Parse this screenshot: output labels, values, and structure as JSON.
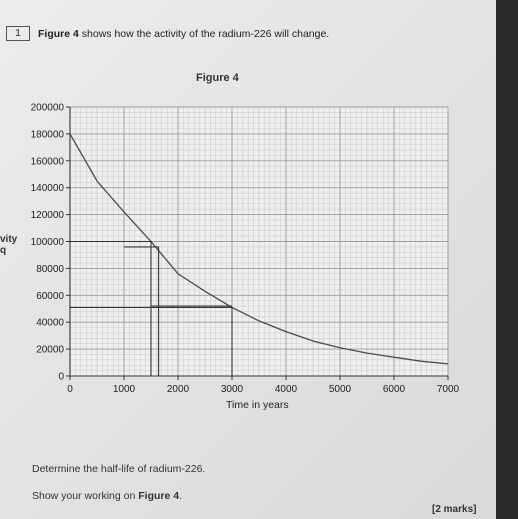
{
  "question": {
    "number": "1",
    "intro_bold": "Figure 4",
    "intro_rest": " shows how the activity of the radium-226 will change."
  },
  "figure_title": "Figure 4",
  "y_axis_label_line1": "vity",
  "y_axis_label_line2": "q",
  "x_axis_label": "Time in years",
  "instruction_1": "Determine the half-life of radium-226.",
  "instruction_2_prefix": "Show your working on ",
  "instruction_2_bold": "Figure 4",
  "instruction_2_suffix": ".",
  "marks": "[2 marks]",
  "chart_data": {
    "type": "line",
    "title": "Figure 4",
    "xlabel": "Time in years",
    "ylabel": "",
    "xlim": [
      0,
      7000
    ],
    "ylim": [
      0,
      200000
    ],
    "x_ticks": [
      0,
      1000,
      2000,
      3000,
      4000,
      5000,
      6000,
      7000
    ],
    "x_tick_labels": [
      "0",
      "1000",
      "2000",
      "3000",
      "4000",
      "5000",
      "6000",
      "7000"
    ],
    "y_ticks": [
      0,
      20000,
      40000,
      60000,
      80000,
      100000,
      120000,
      140000,
      160000,
      180000,
      200000
    ],
    "y_tick_labels": [
      "0",
      "20000",
      "40000",
      "60000",
      "80000",
      "100000",
      "120000",
      "140000",
      "160000",
      "180000",
      "200000"
    ],
    "grid": true,
    "series": [
      {
        "name": "",
        "x": [
          0,
          500,
          1000,
          1500,
          2000,
          2500,
          3000,
          3500,
          4000,
          4500,
          5000,
          5500,
          6000,
          6500,
          7000
        ],
        "y": [
          180000,
          145000,
          122000,
          100000,
          76000,
          63000,
          51000,
          41000,
          33000,
          26000,
          21000,
          17000,
          14000,
          11000,
          9000
        ]
      }
    ],
    "working_lines": [
      {
        "x": [
          0,
          1500,
          1500
        ],
        "y": [
          100000,
          100000,
          0
        ]
      },
      {
        "x": [
          1000,
          1640,
          1640
        ],
        "y": [
          96000,
          96000,
          0
        ]
      },
      {
        "x": [
          0,
          3000,
          3000
        ],
        "y": [
          51000,
          51000,
          0
        ]
      },
      {
        "x": [
          1500,
          3000
        ],
        "y": [
          52000,
          52000
        ]
      }
    ],
    "colors": {
      "curve": "#4a4a4a",
      "grid_major": "#9a9a9a",
      "grid_minor": "#c8c8c8",
      "working": "#333333"
    }
  }
}
